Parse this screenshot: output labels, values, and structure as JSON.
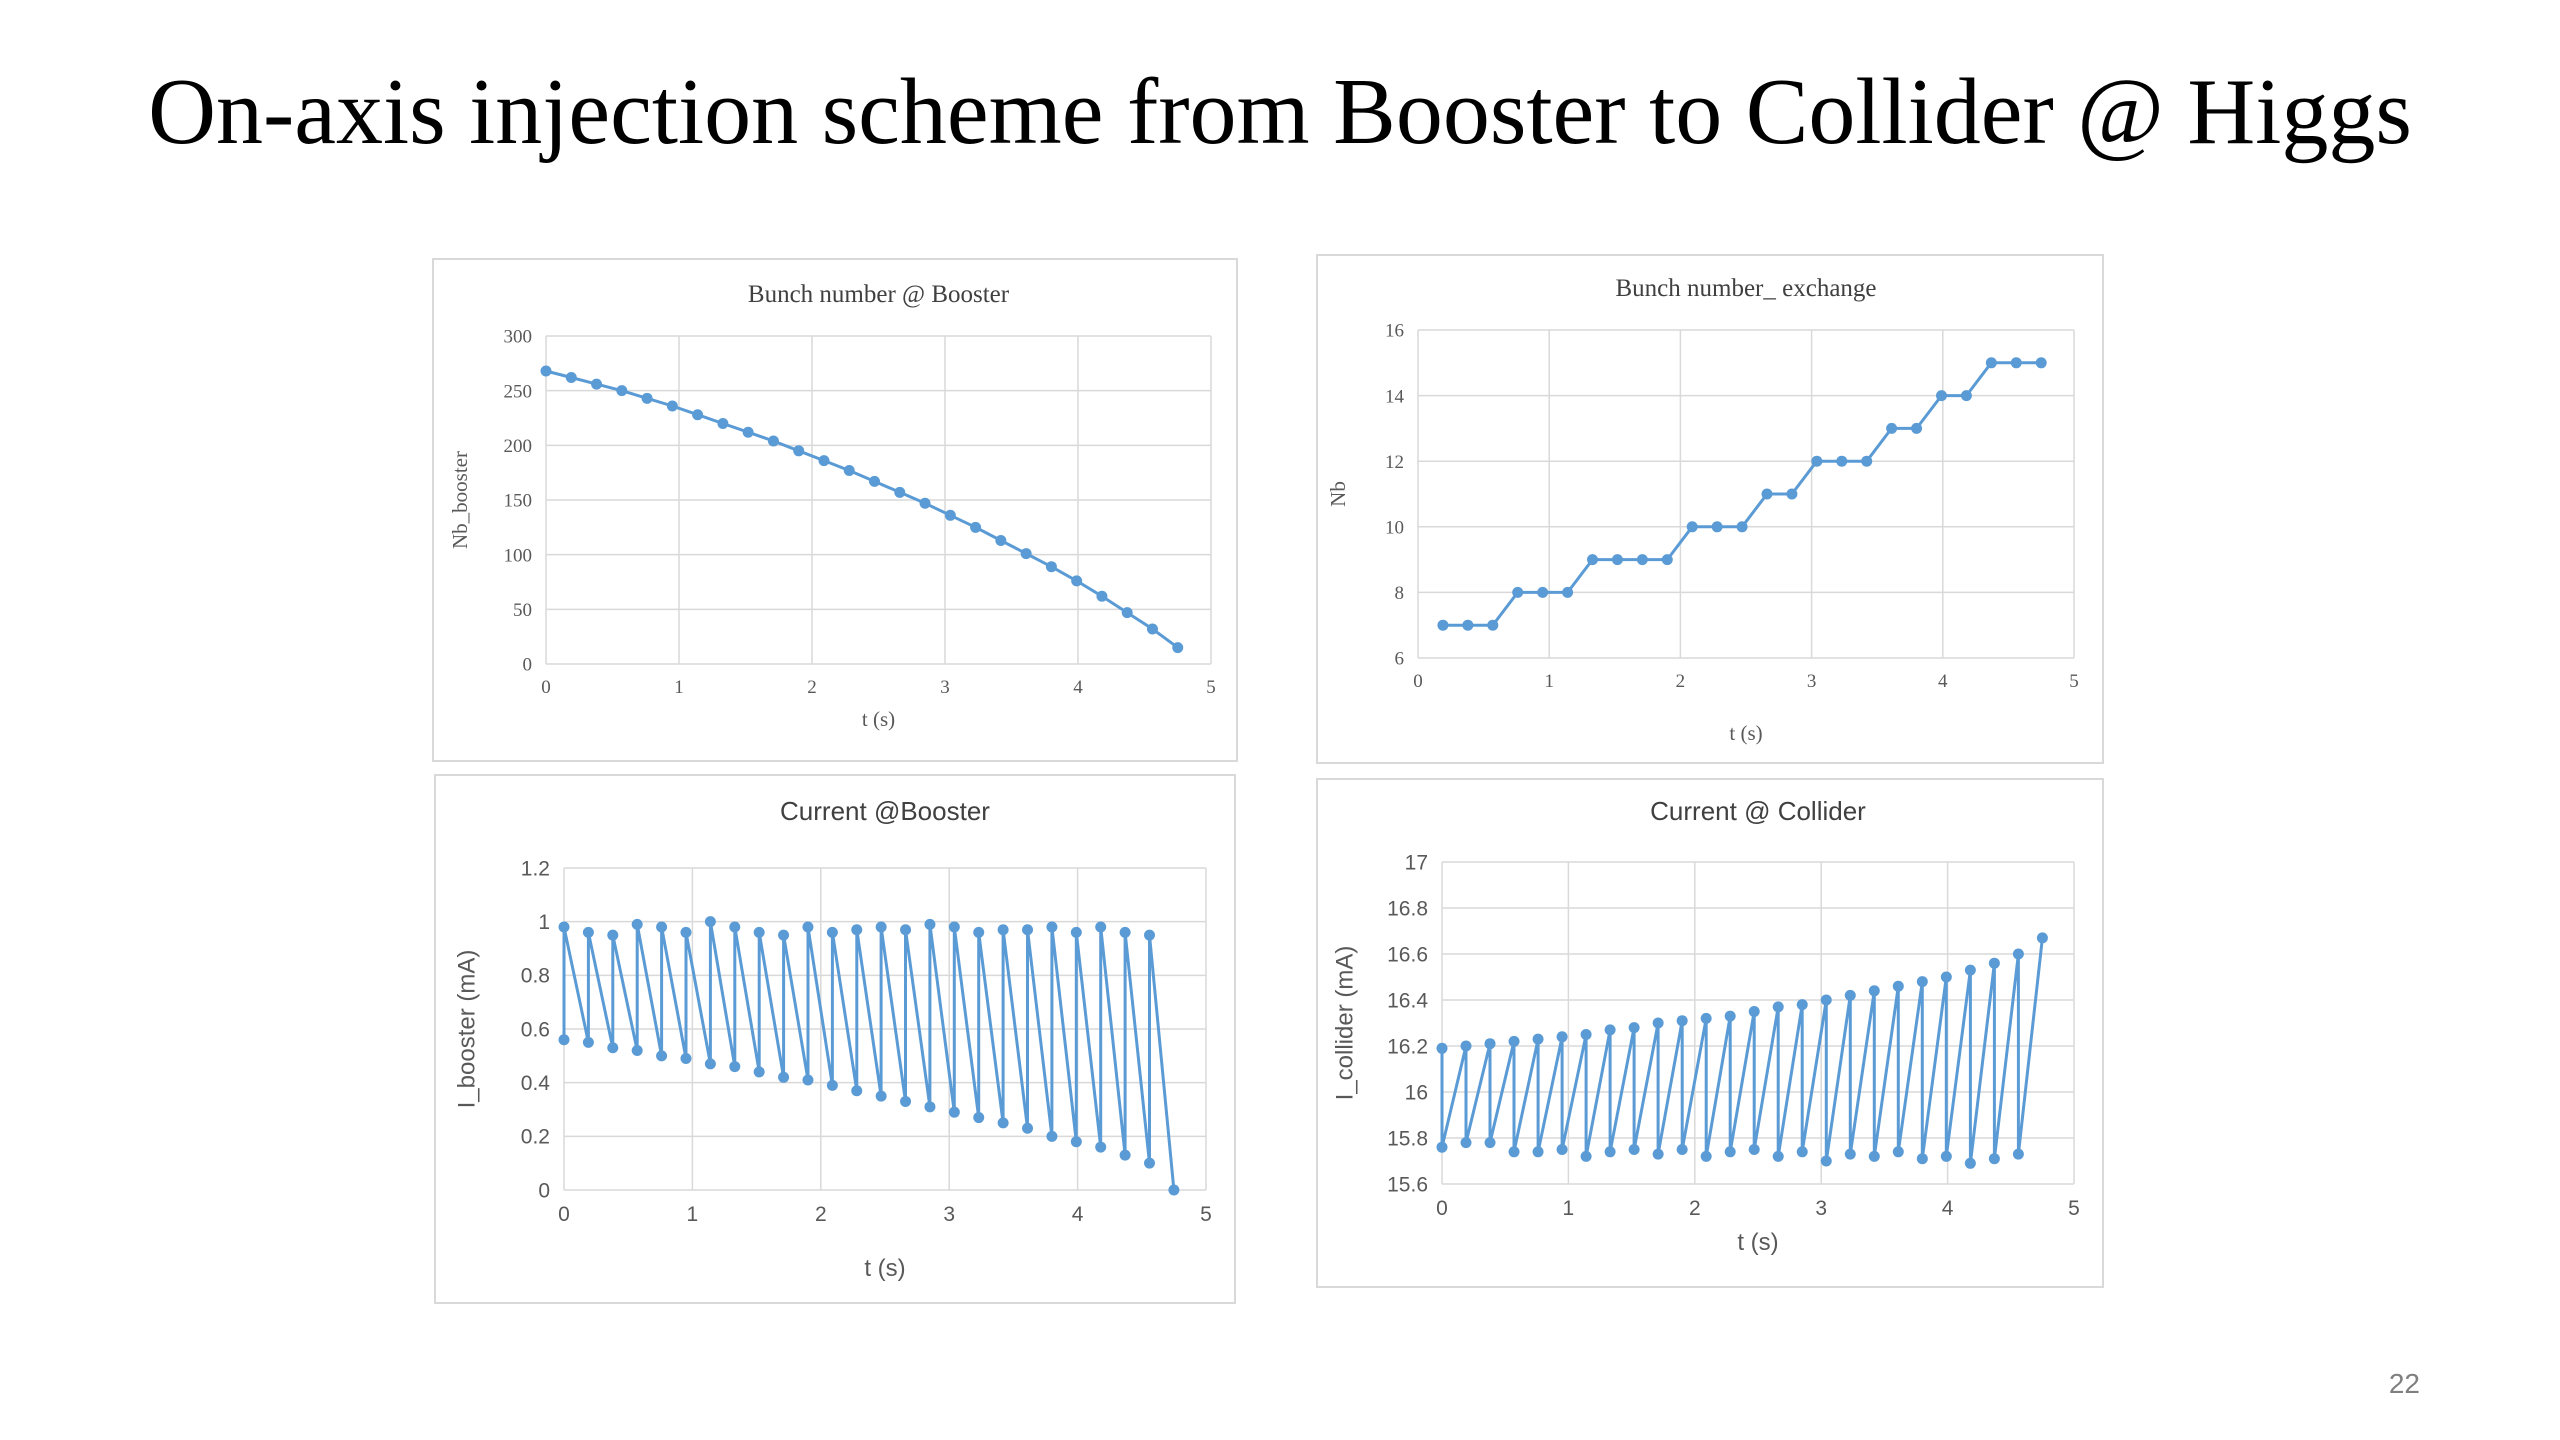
{
  "slide": {
    "title": "On-axis injection scheme from Booster to Collider @ Higgs",
    "page_number": "22"
  },
  "colors": {
    "series": "#5b9bd5",
    "grid": "#d9d9d9",
    "axis_text": "#595959",
    "title_text": "#404040"
  },
  "chart_data": [
    {
      "type": "line",
      "title": "Bunch number @ Booster",
      "xlabel": "t (s)",
      "ylabel": "Nb_booster",
      "xlim": [
        0,
        5
      ],
      "ylim": [
        0,
        300
      ],
      "xticks": [
        "0",
        "1",
        "2",
        "3",
        "4",
        "5"
      ],
      "yticks": [
        "0",
        "50",
        "100",
        "150",
        "200",
        "250",
        "300"
      ],
      "grid": true,
      "legend": "none",
      "font": "serif",
      "series": [
        {
          "x": [
            0,
            0.19,
            0.38,
            0.57,
            0.76,
            0.95,
            1.14,
            1.33,
            1.52,
            1.71,
            1.9,
            2.09,
            2.28,
            2.47,
            2.66,
            2.85,
            3.04,
            3.23,
            3.42,
            3.61,
            3.8,
            3.99,
            4.18,
            4.37,
            4.56,
            4.75
          ],
          "y": [
            268,
            262,
            256,
            250,
            243,
            236,
            228,
            220,
            212,
            204,
            195,
            186,
            177,
            167,
            157,
            147,
            136,
            125,
            113,
            101,
            89,
            76,
            62,
            47,
            32,
            15
          ]
        }
      ]
    },
    {
      "type": "line",
      "title": "Bunch number_ exchange",
      "xlabel": "t (s)",
      "ylabel": "Nb",
      "xlim": [
        0,
        5
      ],
      "ylim": [
        6,
        16
      ],
      "xticks": [
        "0",
        "1",
        "2",
        "3",
        "4",
        "5"
      ],
      "yticks": [
        "6",
        "8",
        "10",
        "12",
        "14",
        "16"
      ],
      "grid": true,
      "legend": "none",
      "font": "serif",
      "series": [
        {
          "x": [
            0.19,
            0.38,
            0.57,
            0.76,
            0.95,
            1.14,
            1.33,
            1.52,
            1.71,
            1.9,
            2.09,
            2.28,
            2.47,
            2.66,
            2.85,
            3.04,
            3.23,
            3.42,
            3.61,
            3.8,
            3.99,
            4.18,
            4.37,
            4.56,
            4.75
          ],
          "y": [
            7,
            7,
            7,
            8,
            8,
            8,
            9,
            9,
            9,
            9,
            10,
            10,
            10,
            11,
            11,
            12,
            12,
            12,
            13,
            13,
            14,
            14,
            15,
            15,
            15
          ]
        }
      ]
    },
    {
      "type": "line",
      "title": "Current @Booster",
      "xlabel": "t (s)",
      "ylabel": "I_booster (mA)",
      "xlim": [
        0,
        5
      ],
      "ylim": [
        0,
        1.2
      ],
      "xticks": [
        "0",
        "1",
        "2",
        "3",
        "4",
        "5"
      ],
      "yticks": [
        "0",
        "0.2",
        "0.4",
        "0.6",
        "0.8",
        "1",
        "1.2"
      ],
      "grid": true,
      "legend": "none",
      "font": "sans",
      "series": [
        {
          "x": [
            0,
            0,
            0.19,
            0.19,
            0.38,
            0.38,
            0.57,
            0.57,
            0.76,
            0.76,
            0.95,
            0.95,
            1.14,
            1.14,
            1.33,
            1.33,
            1.52,
            1.52,
            1.71,
            1.71,
            1.9,
            1.9,
            2.09,
            2.09,
            2.28,
            2.28,
            2.47,
            2.47,
            2.66,
            2.66,
            2.85,
            2.85,
            3.04,
            3.04,
            3.23,
            3.23,
            3.42,
            3.42,
            3.61,
            3.61,
            3.8,
            3.8,
            3.99,
            3.99,
            4.18,
            4.18,
            4.37,
            4.37,
            4.56,
            4.56,
            4.75
          ],
          "y": [
            0.56,
            0.98,
            0.55,
            0.96,
            0.53,
            0.95,
            0.52,
            0.99,
            0.5,
            0.98,
            0.49,
            0.96,
            0.47,
            1.0,
            0.46,
            0.98,
            0.44,
            0.96,
            0.42,
            0.95,
            0.41,
            0.98,
            0.39,
            0.96,
            0.37,
            0.97,
            0.35,
            0.98,
            0.33,
            0.97,
            0.31,
            0.99,
            0.29,
            0.98,
            0.27,
            0.96,
            0.25,
            0.97,
            0.23,
            0.97,
            0.2,
            0.98,
            0.18,
            0.96,
            0.16,
            0.98,
            0.13,
            0.96,
            0.1,
            0.95,
            0.0
          ]
        }
      ]
    },
    {
      "type": "line",
      "title": "Current @ Collider",
      "xlabel": "t (s)",
      "ylabel": "I_collider (mA)",
      "xlim": [
        0,
        5
      ],
      "ylim": [
        15.6,
        17
      ],
      "xticks": [
        "0",
        "1",
        "2",
        "3",
        "4",
        "5"
      ],
      "yticks": [
        "15.6",
        "15.8",
        "16",
        "16.2",
        "16.4",
        "16.6",
        "16.8",
        "17"
      ],
      "grid": true,
      "legend": "none",
      "font": "sans",
      "series": [
        {
          "x": [
            0,
            0,
            0.19,
            0.19,
            0.38,
            0.38,
            0.57,
            0.57,
            0.76,
            0.76,
            0.95,
            0.95,
            1.14,
            1.14,
            1.33,
            1.33,
            1.52,
            1.52,
            1.71,
            1.71,
            1.9,
            1.9,
            2.09,
            2.09,
            2.28,
            2.28,
            2.47,
            2.47,
            2.66,
            2.66,
            2.85,
            2.85,
            3.04,
            3.04,
            3.23,
            3.23,
            3.42,
            3.42,
            3.61,
            3.61,
            3.8,
            3.8,
            3.99,
            3.99,
            4.18,
            4.18,
            4.37,
            4.37,
            4.56,
            4.56,
            4.75
          ],
          "y": [
            16.19,
            15.76,
            16.2,
            15.78,
            16.21,
            15.78,
            16.22,
            15.74,
            16.23,
            15.74,
            16.24,
            15.75,
            16.25,
            15.72,
            16.27,
            15.74,
            16.28,
            15.75,
            16.3,
            15.73,
            16.31,
            15.75,
            16.32,
            15.72,
            16.33,
            15.74,
            16.35,
            15.75,
            16.37,
            15.72,
            16.38,
            15.74,
            16.4,
            15.7,
            16.42,
            15.73,
            16.44,
            15.72,
            16.46,
            15.74,
            16.48,
            15.71,
            16.5,
            15.72,
            16.53,
            15.69,
            16.56,
            15.71,
            16.6,
            15.73,
            16.67
          ]
        }
      ]
    }
  ]
}
